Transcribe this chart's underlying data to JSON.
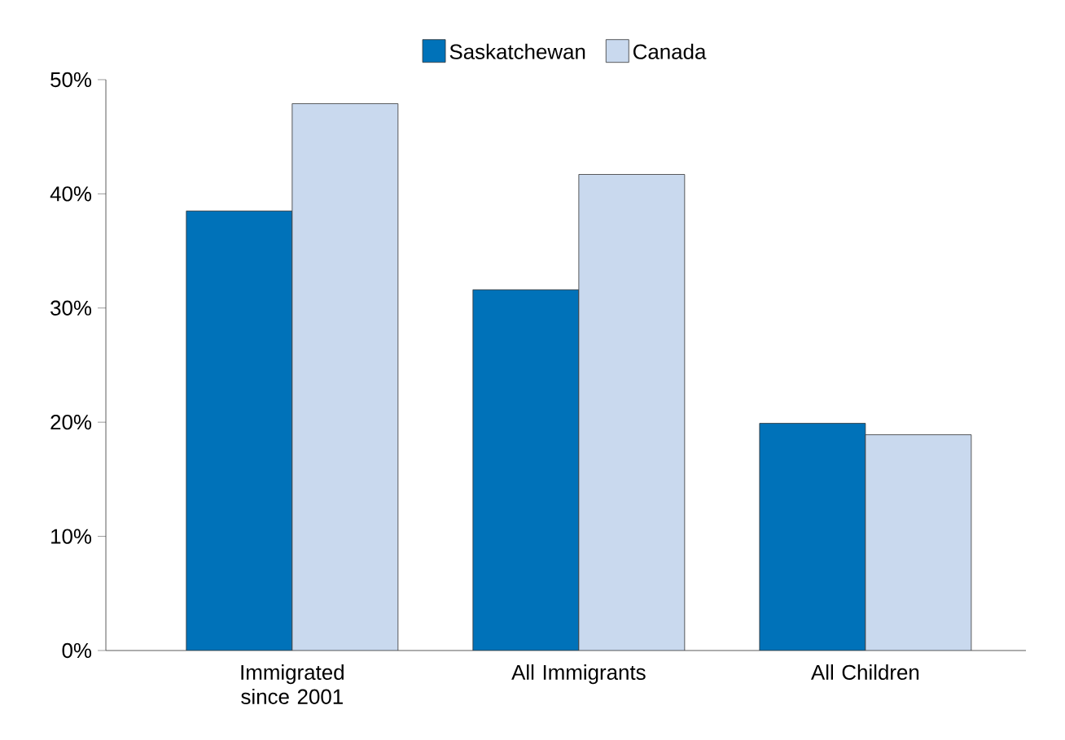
{
  "chart_data": {
    "type": "bar",
    "categories": [
      "Immigrated since 2001",
      "All Immigrants",
      "All Children"
    ],
    "series": [
      {
        "name": "Saskatchewan",
        "color": "#0072b9",
        "values": [
          38.5,
          31.6,
          19.9
        ]
      },
      {
        "name": "Canada",
        "color": "#c9d9ee",
        "values": [
          47.9,
          41.7,
          18.9
        ]
      }
    ],
    "ylim": [
      0,
      50
    ],
    "yticks": [
      {
        "value": 0,
        "label": "0%"
      },
      {
        "value": 10,
        "label": "10%"
      },
      {
        "value": 20,
        "label": "20%"
      },
      {
        "value": 30,
        "label": "30%"
      },
      {
        "value": 40,
        "label": "40%"
      },
      {
        "value": 50,
        "label": "50%"
      }
    ],
    "grid": false,
    "legend": "top"
  }
}
